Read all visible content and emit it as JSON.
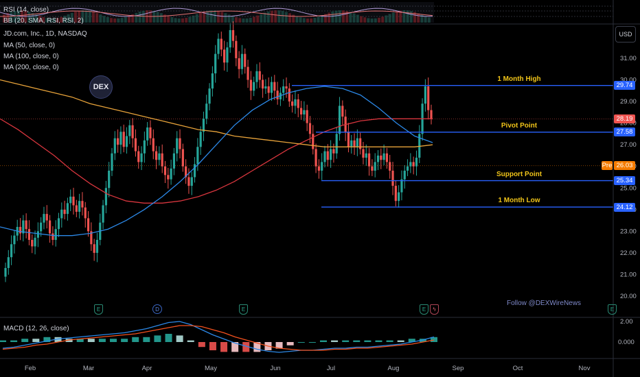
{
  "header": {
    "rsi_label": "RSI (14, close)",
    "bb_label": "BB (20, SMA, RSI, RSI, 2)",
    "symbol_label": "JD.com, Inc., 1D, NASDAQ",
    "ma50_label": "MA (50, close, 0)",
    "ma100_label": "MA (100, close, 0)",
    "ma200_label": "MA (200, close, 0)",
    "macd_label": "MACD (12, 26, close)",
    "currency": "USD",
    "watermark": "DEX",
    "follow_text": "Follow @DEXWireNews"
  },
  "colors": {
    "up": "#26a69a",
    "down": "#ef5350",
    "ma50": "#2c89e8",
    "ma100": "#d9363e",
    "ma200": "#e8a33a",
    "level": "#2962ff",
    "annotation": "#f0c419",
    "macd_line": "#2c89e8",
    "signal_line": "#f4511e"
  },
  "events": [
    {
      "icon": "earnings-icon",
      "label": "E"
    },
    {
      "icon": "dividend-icon",
      "label": "D"
    },
    {
      "icon": "earnings-icon",
      "label": "E"
    },
    {
      "icon": "earnings-icon",
      "label": "E"
    },
    {
      "icon": "earnings-icon",
      "label": "E"
    },
    {
      "icon": "split-icon",
      "label": "ϟ"
    },
    {
      "icon": "earnings-icon",
      "label": "E"
    }
  ],
  "chart_data": {
    "type": "candlestick",
    "symbol": "JD.com, Inc.",
    "interval": "1D",
    "exchange": "NASDAQ",
    "ylim": [
      19.6,
      32.5
    ],
    "yticks": [
      "20.00",
      "21.00",
      "22.00",
      "23.00",
      "24.00",
      "25.00",
      "26.00",
      "27.00",
      "28.00",
      "29.00",
      "30.00",
      "31.00"
    ],
    "xticks": [
      "Feb",
      "Mar",
      "Apr",
      "May",
      "Jun",
      "Jul",
      "Aug",
      "Sep",
      "Oct",
      "Nov"
    ],
    "price_labels": [
      {
        "text": "29.74",
        "value": 29.74,
        "kind": "level"
      },
      {
        "text": "28.19",
        "value": 28.19,
        "kind": "last"
      },
      {
        "text": "27.58",
        "value": 27.58,
        "kind": "level"
      },
      {
        "text": "26.03",
        "value": 26.03,
        "kind": "pre",
        "prefix": "Pre"
      },
      {
        "text": "25.34",
        "value": 25.34,
        "kind": "level"
      },
      {
        "text": "24.12",
        "value": 24.12,
        "kind": "level"
      }
    ],
    "levels": [
      {
        "label": "1 Month High",
        "value": 29.74
      },
      {
        "label": "Pivot Point",
        "value": 27.58
      },
      {
        "label": "Support Point",
        "value": 25.34
      },
      {
        "label": "1 Month Low",
        "value": 24.12
      }
    ],
    "closes": [
      21.3,
      21.8,
      22.4,
      22.8,
      23.2,
      22.9,
      23.5,
      23.1,
      22.6,
      22.3,
      22.7,
      23.0,
      23.4,
      23.8,
      23.5,
      22.9,
      22.6,
      23.1,
      23.6,
      24.0,
      23.8,
      24.3,
      24.6,
      24.2,
      23.9,
      24.4,
      24.1,
      23.6,
      23.0,
      22.4,
      22.0,
      22.6,
      23.4,
      24.2,
      25.0,
      25.8,
      26.6,
      27.3,
      27.0,
      27.6,
      26.9,
      27.4,
      27.9,
      27.3,
      26.7,
      26.2,
      26.6,
      27.2,
      27.8,
      27.3,
      26.7,
      26.3,
      26.6,
      26.0,
      25.6,
      25.4,
      25.9,
      26.6,
      27.3,
      26.8,
      26.0,
      25.5,
      25.1,
      25.5,
      26.1,
      26.9,
      27.6,
      28.2,
      28.9,
      29.6,
      30.3,
      31.2,
      31.9,
      31.4,
      30.8,
      31.5,
      32.3,
      31.8,
      31.0,
      30.5,
      31.2,
      30.6,
      30.0,
      29.5,
      29.9,
      30.4,
      30.0,
      29.6,
      29.7,
      29.4,
      29.9,
      29.5,
      29.1,
      29.4,
      29.7,
      29.6,
      29.0,
      28.8,
      29.1,
      28.7,
      28.4,
      28.6,
      28.0,
      27.5,
      26.8,
      26.0,
      25.8,
      26.2,
      26.7,
      26.3,
      26.8,
      26.6,
      27.5,
      28.8,
      28.3,
      27.6,
      26.9,
      27.2,
      26.9,
      27.3,
      26.8,
      26.4,
      26.6,
      26.0,
      25.8,
      26.2,
      26.5,
      26.3,
      26.6,
      26.2,
      25.8,
      25.1,
      24.4,
      24.8,
      25.4,
      25.8,
      26.0,
      26.2,
      26.0,
      26.4,
      27.5,
      28.9,
      29.7,
      28.6,
      28.19
    ],
    "ma50": [
      23.2,
      23.0,
      22.9,
      22.8,
      22.8,
      22.9,
      23.1,
      23.5,
      24.0,
      24.6,
      25.3,
      26.1,
      27.0,
      27.9,
      28.6,
      29.1,
      29.4,
      29.6,
      29.7,
      29.6,
      29.3,
      28.7,
      28.0,
      27.4,
      27.1
    ],
    "ma100": [
      28.2,
      27.7,
      27.1,
      26.5,
      25.8,
      25.2,
      24.7,
      24.4,
      24.3,
      24.3,
      24.4,
      24.6,
      24.9,
      25.3,
      25.8,
      26.3,
      26.8,
      27.2,
      27.6,
      27.9,
      28.1,
      28.2,
      28.2,
      28.2,
      28.2
    ],
    "ma200": [
      30.0,
      29.8,
      29.6,
      29.4,
      29.2,
      28.9,
      28.7,
      28.5,
      28.3,
      28.1,
      27.9,
      27.7,
      27.6,
      27.4,
      27.3,
      27.2,
      27.1,
      27.0,
      26.9,
      26.9,
      26.9,
      26.9,
      26.9,
      26.9,
      27.0
    ],
    "macd": {
      "yticks": [
        "2.00",
        "0.000"
      ],
      "ylim": [
        -2.0,
        2.6
      ],
      "macd": [
        -0.6,
        -0.5,
        -0.3,
        -0.1,
        0.1,
        0.3,
        0.4,
        0.5,
        0.6,
        0.7,
        0.8,
        0.9,
        1.1,
        1.3,
        1.6,
        1.9,
        2.0,
        1.7,
        1.2,
        0.7,
        0.3,
        -0.1,
        -0.4,
        -0.7,
        -0.9,
        -1.0,
        -0.9,
        -0.8,
        -0.8,
        -0.7,
        -0.6,
        -0.6,
        -0.5,
        -0.5,
        -0.4,
        -0.3,
        -0.2,
        0.0,
        0.2,
        0.5
      ],
      "signal": [
        -0.7,
        -0.6,
        -0.5,
        -0.3,
        -0.2,
        0.0,
        0.2,
        0.3,
        0.4,
        0.5,
        0.6,
        0.7,
        0.8,
        1.0,
        1.2,
        1.4,
        1.6,
        1.6,
        1.5,
        1.2,
        0.9,
        0.5,
        0.2,
        -0.1,
        -0.4,
        -0.6,
        -0.7,
        -0.8,
        -0.8,
        -0.8,
        -0.7,
        -0.7,
        -0.6,
        -0.6,
        -0.5,
        -0.4,
        -0.3,
        -0.2,
        0.0,
        0.2
      ]
    }
  }
}
